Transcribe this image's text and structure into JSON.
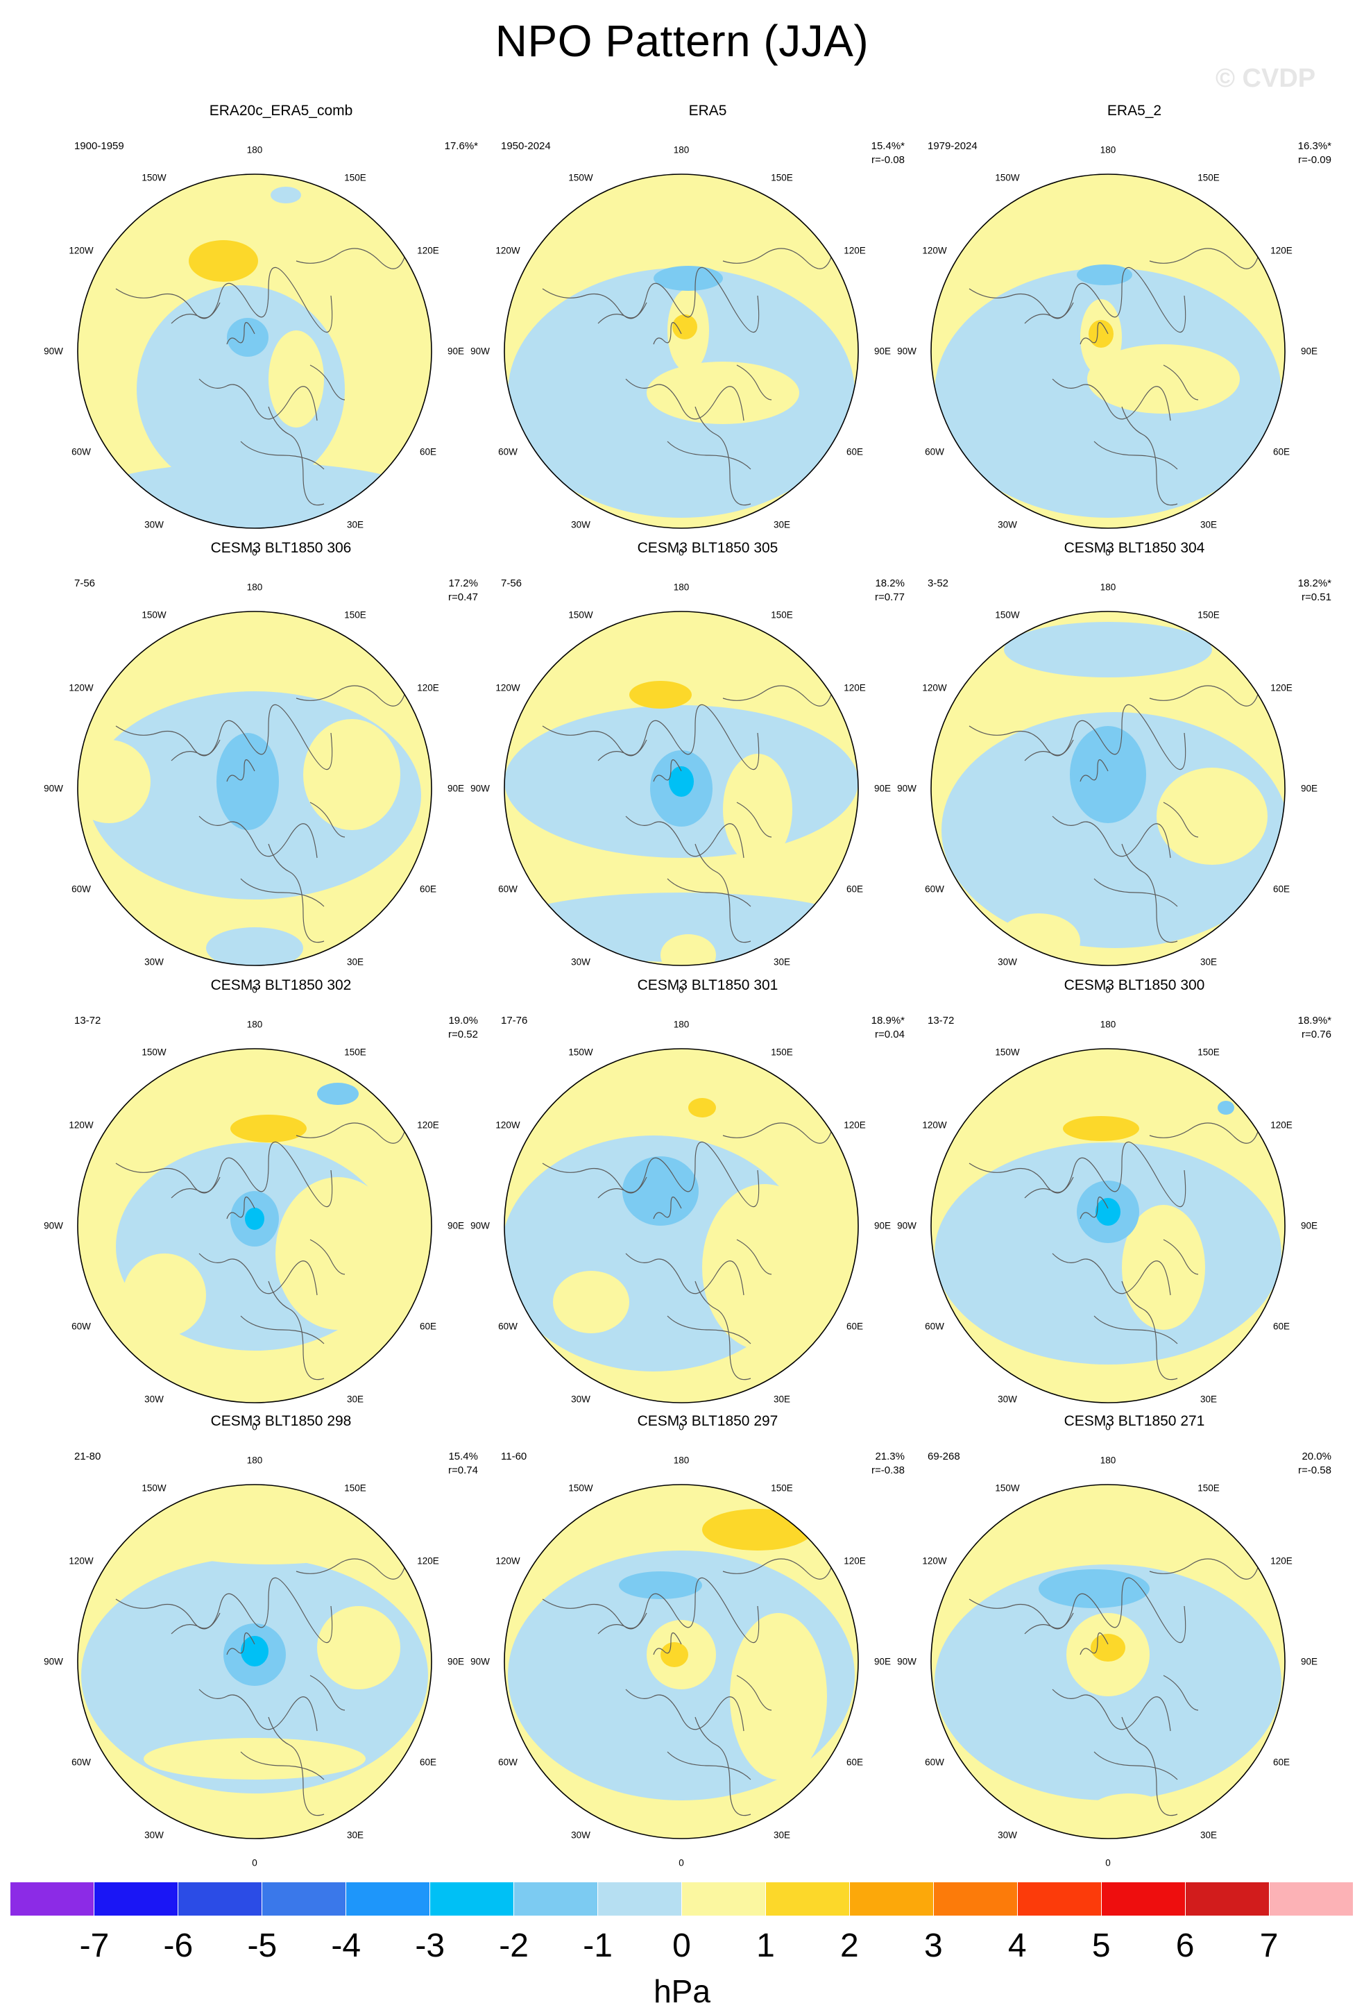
{
  "title": "NPO Pattern (JJA)",
  "watermark": "© CVDP",
  "longitude_labels": [
    "180",
    "150E",
    "120E",
    "90E",
    "60E",
    "30E",
    "0",
    "30W",
    "60W",
    "90W",
    "120W",
    "150W"
  ],
  "panels": [
    {
      "title": "ERA20c_ERA5_comb",
      "period": "1900-1959",
      "pct": "17.6%*",
      "r": ""
    },
    {
      "title": "ERA5",
      "period": "1950-2024",
      "pct": "15.4%*",
      "r": "r=-0.08"
    },
    {
      "title": "ERA5_2",
      "period": "1979-2024",
      "pct": "16.3%*",
      "r": "r=-0.09"
    },
    {
      "title": "CESM3 BLT1850 306",
      "period": "7-56",
      "pct": "17.2%",
      "r": "r=0.47"
    },
    {
      "title": "CESM3 BLT1850 305",
      "period": "7-56",
      "pct": "18.2%",
      "r": "r=0.77"
    },
    {
      "title": "CESM3 BLT1850 304",
      "period": "3-52",
      "pct": "18.2%*",
      "r": "r=0.51"
    },
    {
      "title": "CESM3 BLT1850 302",
      "period": "13-72",
      "pct": "19.0%",
      "r": "r=0.52"
    },
    {
      "title": "CESM3 BLT1850 301",
      "period": "17-76",
      "pct": "18.9%*",
      "r": "r=0.04"
    },
    {
      "title": "CESM3 BLT1850 300",
      "period": "13-72",
      "pct": "18.9%*",
      "r": "r=0.76"
    },
    {
      "title": "CESM3 BLT1850 298",
      "period": "21-80",
      "pct": "15.4%",
      "r": "r=0.74"
    },
    {
      "title": "CESM3 BLT1850 297",
      "period": "11-60",
      "pct": "21.3%",
      "r": "r=-0.38"
    },
    {
      "title": "CESM3 BLT1850 271",
      "period": "69-268",
      "pct": "20.0%",
      "r": "r=-0.58"
    }
  ],
  "colorbar": {
    "colors": [
      "#8c2be6",
      "#1a16f5",
      "#2b4ce6",
      "#3a78ea",
      "#1e96fa",
      "#00c0f5",
      "#7ccbf2",
      "#b6dff2",
      "#fbf7a0",
      "#fcd82a",
      "#fca80a",
      "#fc7b0a",
      "#fc3b0a",
      "#ee0e0e",
      "#d21c1c",
      "#fcb2b6"
    ],
    "ticks": [
      "-7",
      "-6",
      "-5",
      "-4",
      "-3",
      "-2",
      "-1",
      "0",
      "1",
      "2",
      "3",
      "4",
      "5",
      "6",
      "7"
    ],
    "units": "hPa"
  },
  "map_colors": {
    "light_blue": "#b6dff2",
    "mid_blue": "#7ccbf2",
    "cyan": "#00c0f5",
    "light_yellow": "#fbf7a0",
    "gold": "#fcd82a",
    "coastline": "#5a5a5a"
  }
}
